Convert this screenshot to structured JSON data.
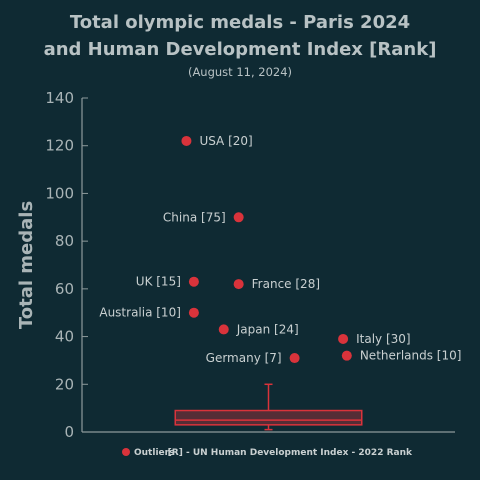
{
  "chart_data": {
    "type": "box",
    "title_lines": [
      "Total olympic medals - Paris 2024",
      "and Human Development Index [Rank]"
    ],
    "subtitle": "(August 11, 2024)",
    "ylabel": "Total medals",
    "ylim": [
      0,
      140
    ],
    "yticks": [
      0,
      20,
      40,
      60,
      80,
      100,
      120,
      140
    ],
    "box": {
      "q1": 3,
      "median": 5,
      "q3": 9,
      "whisker_low": 1,
      "whisker_high": 20
    },
    "outliers": [
      {
        "label": "USA [20]",
        "value": 122,
        "jitter": 0.28,
        "label_side": "right"
      },
      {
        "label": "China [75]",
        "value": 90,
        "jitter": 0.42,
        "label_side": "left"
      },
      {
        "label": "UK [15]",
        "value": 63,
        "jitter": 0.3,
        "label_side": "left"
      },
      {
        "label": "France [28]",
        "value": 62,
        "jitter": 0.42,
        "label_side": "right"
      },
      {
        "label": "Australia [10]",
        "value": 50,
        "jitter": 0.3,
        "label_side": "left"
      },
      {
        "label": "Japan [24]",
        "value": 43,
        "jitter": 0.38,
        "label_side": "right"
      },
      {
        "label": "Italy [30]",
        "value": 39,
        "jitter": 0.7,
        "label_side": "right"
      },
      {
        "label": "Germany [7]",
        "value": 31,
        "jitter": 0.57,
        "label_side": "left"
      },
      {
        "label": "Netherlands [10]",
        "value": 32,
        "jitter": 0.71,
        "label_side": "right"
      }
    ],
    "legend": {
      "label": "Outliers",
      "placement": "bottom-left"
    },
    "note": "[R] - UN Human Development Index - 2022 Rank",
    "colors": {
      "background": "#0f2a33",
      "marker": "#d9333b",
      "axis": "#8e9a9c",
      "text": "#b8c2c4"
    }
  }
}
